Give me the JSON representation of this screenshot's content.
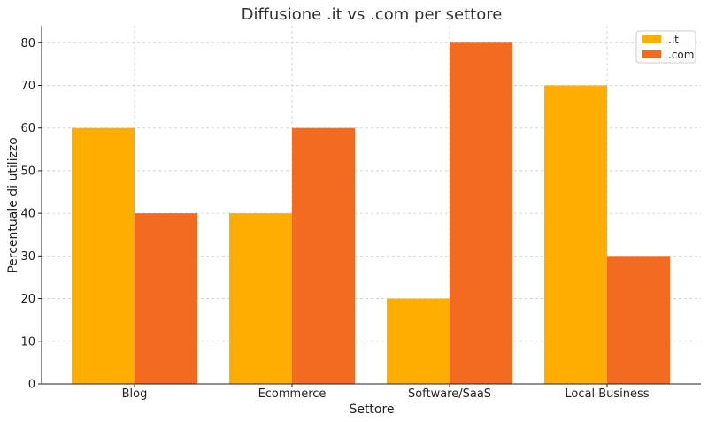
{
  "chart_data": {
    "type": "bar",
    "title": "Diffusione .it vs .com per settore",
    "xlabel": "Settore",
    "ylabel": "Percentuale di utilizzo",
    "categories": [
      "Blog",
      "Ecommerce",
      "Software/SaaS",
      "Local Business"
    ],
    "series": [
      {
        "name": ".it",
        "color": "#FFAE00",
        "values": [
          60,
          40,
          20,
          70
        ]
      },
      {
        "name": ".com",
        "color": "#F26B21",
        "values": [
          40,
          60,
          80,
          30
        ]
      }
    ],
    "ylim": [
      0,
      84
    ],
    "yticks": [
      0,
      10,
      20,
      30,
      40,
      50,
      60,
      70,
      80
    ],
    "grid": true,
    "legend_position": "top-right"
  }
}
